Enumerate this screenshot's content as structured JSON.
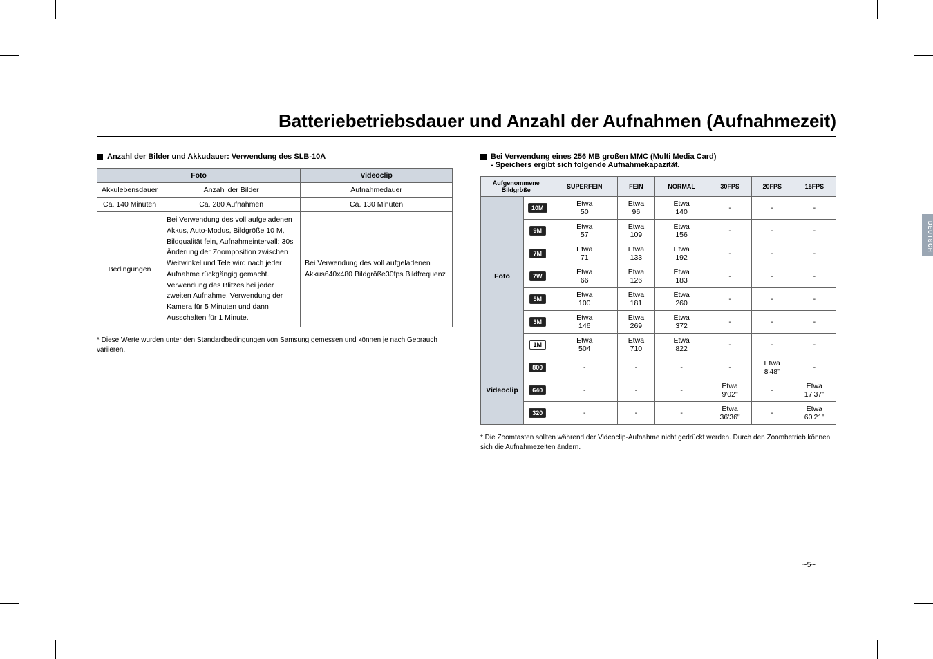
{
  "title": "Batteriebetriebsdauer und Anzahl der Aufnahmen (Aufnahmezeit)",
  "left": {
    "heading": "Anzahl der Bilder und Akkudauer: Verwendung des SLB-10A",
    "headers": {
      "foto": "Foto",
      "videoclip": "Videoclip"
    },
    "row_labels": {
      "akkulebensdauer": "Akkulebensdauer",
      "anzahl_bilder": "Anzahl der Bilder",
      "aufnahmedauer": "Aufnahmedauer",
      "ca140": "Ca. 140 Minuten",
      "ca280": "Ca. 280 Aufnahmen",
      "ca130": "Ca. 130 Minuten",
      "bedingungen": "Bedingungen"
    },
    "bedingungen_foto": "Bei Verwendung des voll aufgeladenen Akkus, Auto-Modus, Bildgröße 10 M, Bildqualität fein, Aufnahmeintervall: 30s Änderung der Zoomposition zwischen Weitwinkel und Tele wird nach jeder Aufnahme rückgängig gemacht. Verwendung des Blitzes bei jeder zweiten Aufnahme. Verwendung der Kamera für 5 Minuten und dann Ausschalten für 1 Minute.",
    "bedingungen_video": "Bei Verwendung des voll aufgeladenen Akkus640x480 Bildgröße30fps Bildfrequenz",
    "footnote": "* Diese Werte wurden unter den Standardbedingungen von Samsung gemessen und können je nach Gebrauch variieren."
  },
  "right": {
    "heading_l1": "Bei Verwendung eines 256 MB großen MMC (Multi Media Card)",
    "heading_l2": "- Speichers ergibt sich folgende Aufnahmekapazität.",
    "col_headers": {
      "bildgroesse": "Aufgenommene Bildgröße",
      "superfein": "SUPERFEIN",
      "fein": "FEIN",
      "normal": "NORMAL",
      "fps30": "30FPS",
      "fps20": "20FPS",
      "fps15": "15FPS"
    },
    "row_group_foto": "Foto",
    "row_group_video": "Videoclip",
    "foto_rows": [
      {
        "size": "10M",
        "sf": "Etwa 50",
        "f": "Etwa 96",
        "n": "Etwa 140",
        "f30": "-",
        "f20": "-",
        "f15": "-"
      },
      {
        "size": "9M",
        "sf": "Etwa 57",
        "f": "Etwa 109",
        "n": "Etwa 156",
        "f30": "-",
        "f20": "-",
        "f15": "-"
      },
      {
        "size": "7M",
        "sf": "Etwa 71",
        "f": "Etwa 133",
        "n": "Etwa 192",
        "f30": "-",
        "f20": "-",
        "f15": "-"
      },
      {
        "size": "7W",
        "sf": "Etwa 66",
        "f": "Etwa 126",
        "n": "Etwa 183",
        "f30": "-",
        "f20": "-",
        "f15": "-"
      },
      {
        "size": "5M",
        "sf": "Etwa 100",
        "f": "Etwa 181",
        "n": "Etwa 260",
        "f30": "-",
        "f20": "-",
        "f15": "-"
      },
      {
        "size": "3M",
        "sf": "Etwa 146",
        "f": "Etwa 269",
        "n": "Etwa 372",
        "f30": "-",
        "f20": "-",
        "f15": "-"
      },
      {
        "size": "1M",
        "light": true,
        "sf": "Etwa 504",
        "f": "Etwa 710",
        "n": "Etwa 822",
        "f30": "-",
        "f20": "-",
        "f15": "-"
      }
    ],
    "video_rows": [
      {
        "size": "800",
        "sf": "-",
        "f": "-",
        "n": "-",
        "f30": "-",
        "f20": "Etwa 8'48\"",
        "f15": "-"
      },
      {
        "size": "640",
        "sf": "-",
        "f": "-",
        "n": "-",
        "f30": "Etwa 9'02\"",
        "f20": "-",
        "f15": "Etwa 17'37\""
      },
      {
        "size": "320",
        "sf": "-",
        "f": "-",
        "n": "-",
        "f30": "Etwa 36'36\"",
        "f20": "-",
        "f15": "Etwa 60'21\""
      }
    ],
    "footnote": "* Die Zoomtasten sollten während der Videoclip-Aufnahme nicht gedrückt werden. Durch den Zoombetrieb können sich die Aufnahmezeiten ändern."
  },
  "side_tab": "DEUTSCH",
  "page_number": "~5~",
  "colors": {
    "header_bg": "#d0d7e0",
    "subheader_bg": "#e5e9ef",
    "border": "#666666",
    "side_tab_bg": "#9aa6b3"
  }
}
